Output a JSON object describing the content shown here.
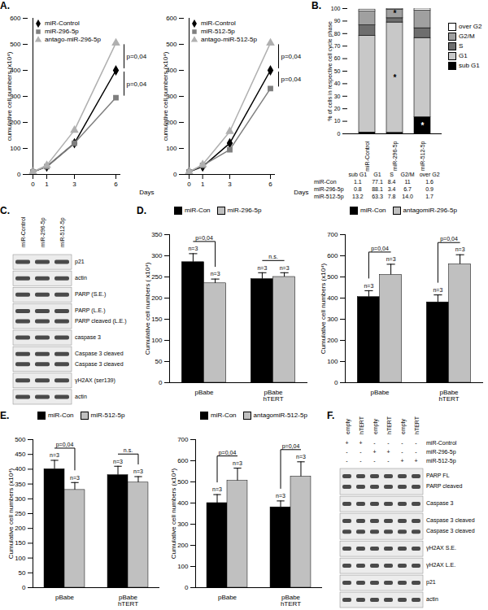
{
  "chart_data": [
    {
      "type": "line",
      "title": "A.",
      "x": [
        0,
        1,
        3,
        6
      ],
      "xlim": [
        0,
        6
      ],
      "xticks": [
        0,
        1,
        3,
        6
      ],
      "xlabel": "Days",
      "ylim": [
        0,
        600
      ],
      "yticks": [
        0,
        100,
        200,
        300,
        400,
        500,
        600
      ],
      "ylabel": "cumulative cell numbers (x10⁴)",
      "legend": "top-left",
      "series": [
        {
          "name": "miR-Control",
          "color": "#000000",
          "marker": "diamond",
          "values": [
            10,
            30,
            120,
            400
          ]
        },
        {
          "name": "miR-296-5p",
          "color": "#7f7f7f",
          "marker": "square",
          "values": [
            10,
            30,
            120,
            295
          ]
        },
        {
          "name": "antago-miR-296-5p",
          "color": "#b0b0b0",
          "marker": "triangle",
          "values": [
            10,
            35,
            170,
            505
          ]
        }
      ],
      "annotations": [
        {
          "text": "p=0,04",
          "series": [
            "antago-miR-296-5p",
            "miR-Control"
          ]
        },
        {
          "text": "p=0,04",
          "series": [
            "miR-Control",
            "miR-296-5p"
          ]
        }
      ]
    },
    {
      "type": "line",
      "x": [
        0,
        1,
        3,
        6
      ],
      "xlim": [
        0,
        6
      ],
      "xticks": [
        0,
        1,
        3,
        6
      ],
      "xlabel": "Days",
      "ylim": [
        0,
        600
      ],
      "yticks": [
        0,
        100,
        200,
        300,
        400,
        500,
        600
      ],
      "ylabel": "cumulative cell numbers (x10⁴)",
      "legend": "top-left",
      "series": [
        {
          "name": "miR-Control",
          "color": "#000000",
          "marker": "diamond",
          "values": [
            10,
            30,
            120,
            400
          ]
        },
        {
          "name": "miR-512-5p",
          "color": "#7f7f7f",
          "marker": "square",
          "values": [
            10,
            35,
            95,
            330
          ]
        },
        {
          "name": "antago-miR-512-5p",
          "color": "#b0b0b0",
          "marker": "triangle",
          "values": [
            10,
            38,
            165,
            505
          ]
        }
      ],
      "annotations": [
        {
          "text": "p=0,04",
          "series": [
            "antago-miR-512-5p",
            "miR-Control"
          ]
        },
        {
          "text": "p=0,04",
          "series": [
            "miR-Control",
            "miR-512-5p"
          ]
        }
      ]
    },
    {
      "type": "bar",
      "stacked": true,
      "title": "B.",
      "categories": [
        "miR-Control",
        "miR-296-5p",
        "miR-512-5p"
      ],
      "ylim": [
        0,
        100
      ],
      "yticks": [
        0,
        10,
        20,
        30,
        40,
        50,
        60,
        70,
        80,
        90,
        100
      ],
      "ylabel": "% of cells in respective cell cycle phase",
      "legend": "right",
      "data_labels": true,
      "row_labels": [
        "miR-Con",
        "miR-296-5p",
        "miR-512-5p"
      ],
      "series": [
        {
          "name": "sub G1",
          "color": "#000000",
          "values": [
            1.1,
            0.8,
            13.2
          ],
          "value_labels": [
            "1.1",
            "0.8",
            "13.2"
          ]
        },
        {
          "name": "G1",
          "color": "#c8c8c8",
          "values": [
            77.1,
            88.1,
            63.3
          ],
          "value_labels": [
            "77.1",
            "88.1",
            "63.3"
          ]
        },
        {
          "name": "S",
          "color": "#6e6e6e",
          "values": [
            8.4,
            3.4,
            7.8
          ],
          "value_labels": [
            "8.4",
            "3.4",
            "7.8"
          ]
        },
        {
          "name": "G2/M",
          "color": "#a0a0a0",
          "values": [
            11,
            6.7,
            14.0
          ],
          "value_labels": [
            "11",
            "6.7",
            "14.0"
          ]
        },
        {
          "name": "over G2",
          "color": "#ffffff",
          "values": [
            1.6,
            0.9,
            1.7
          ],
          "value_labels": [
            "1.6",
            "0.9",
            "1.7"
          ]
        }
      ],
      "annotations": [
        {
          "text": "*",
          "category": "miR-296-5p",
          "series": "G1"
        },
        {
          "text": "*",
          "category": "miR-296-5p",
          "series": "G2/M"
        },
        {
          "text": "*",
          "category": "miR-512-5p",
          "series": "sub G1"
        }
      ]
    },
    {
      "type": "bar",
      "title": "D.",
      "categories": [
        "pBabe",
        "pBabe hTERT"
      ],
      "ylim": [
        0,
        350
      ],
      "yticks": [
        0,
        50,
        100,
        150,
        200,
        250,
        300,
        350
      ],
      "ylabel": "Cumulative cell numbers ( x10⁴)",
      "legend": "top",
      "series": [
        {
          "name": "miR-Con",
          "color": "#000000",
          "values": [
            285,
            245
          ],
          "errors": [
            20,
            15
          ],
          "labels": [
            "n=3",
            "n=3"
          ]
        },
        {
          "name": "miR-296-5p",
          "color": "#c0c0c0",
          "values": [
            235,
            250
          ],
          "errors": [
            10,
            10
          ],
          "labels": [
            "n=3",
            "n=3"
          ]
        }
      ],
      "annotations": [
        {
          "text": "p=0,04",
          "category": "pBabe"
        },
        {
          "text": "n.s.",
          "category": "pBabe hTERT"
        }
      ]
    },
    {
      "type": "bar",
      "categories": [
        "pBabe",
        "pBabe hTERT"
      ],
      "ylim": [
        0,
        700
      ],
      "yticks": [
        0,
        100,
        200,
        300,
        400,
        500,
        600,
        700
      ],
      "ylabel": "Cumulative cell numbers (x10⁴)",
      "legend": "top",
      "series": [
        {
          "name": "miR-Con",
          "color": "#000000",
          "values": [
            405,
            380
          ],
          "errors": [
            30,
            35
          ],
          "labels": [
            "n=3",
            "n=3"
          ]
        },
        {
          "name": "antagomiR-296-5p",
          "color": "#c0c0c0",
          "values": [
            510,
            560
          ],
          "errors": [
            50,
            45
          ],
          "labels": [
            "n=3",
            "n=3"
          ]
        }
      ],
      "annotations": [
        {
          "text": "p=0,04",
          "category": "pBabe"
        },
        {
          "text": "p=0,04",
          "category": "pBabe hTERT"
        }
      ]
    },
    {
      "type": "bar",
      "title": "E.",
      "categories": [
        "pBabe",
        "pBabe hTERT"
      ],
      "ylim": [
        0,
        500
      ],
      "yticks": [
        0,
        50,
        100,
        150,
        200,
        250,
        300,
        350,
        400,
        450,
        500
      ],
      "ylabel": "Cumulative cell numbers (x10⁴)",
      "legend": "top",
      "series": [
        {
          "name": "miR-Con",
          "color": "#000000",
          "values": [
            400,
            380
          ],
          "errors": [
            30,
            30
          ],
          "labels": [
            "n=3",
            "n=3"
          ]
        },
        {
          "name": "miR-512-5p",
          "color": "#c0c0c0",
          "values": [
            330,
            355
          ],
          "errors": [
            25,
            20
          ],
          "labels": [
            "n=3",
            "n=3"
          ]
        }
      ],
      "annotations": [
        {
          "text": "p=0,04",
          "category": "pBabe"
        },
        {
          "text": "n.s.",
          "category": "pBabe hTERT"
        }
      ]
    },
    {
      "type": "bar",
      "categories": [
        "pBabe",
        "pBabe hTERT"
      ],
      "ylim": [
        0,
        700
      ],
      "yticks": [
        0,
        100,
        200,
        300,
        400,
        500,
        600,
        700
      ],
      "ylabel": "Cumulative cell numbers (x10⁴)",
      "legend": "top",
      "series": [
        {
          "name": "miR-Con",
          "color": "#000000",
          "values": [
            400,
            380
          ],
          "errors": [
            40,
            30
          ],
          "labels": [
            "n=3",
            "n=3"
          ]
        },
        {
          "name": "antagomiR-512-5p",
          "color": "#c0c0c0",
          "values": [
            505,
            525
          ],
          "errors": [
            60,
            70
          ],
          "labels": [
            "n=3",
            "n=3"
          ]
        }
      ],
      "annotations": [
        {
          "text": "p=0,04",
          "category": "pBabe"
        },
        {
          "text": "p=0,04",
          "category": "pBabe hTERT"
        }
      ]
    }
  ],
  "blots": [
    {
      "title": "C.",
      "lanes": [
        "miR-Control",
        "miR-296-5p",
        "miR-512-5p"
      ],
      "rows": [
        [
          "p21"
        ],
        [
          "actin"
        ],
        [
          "PARP (S.E.)"
        ],
        [
          "PARP (L.E.)",
          "PARP cleaved (L.E.)"
        ],
        [
          "caspase 3"
        ],
        [
          "Caspase 3 cleaved",
          "Caspase 3 cleaved"
        ],
        [
          "γH2AX (ser139)"
        ],
        [
          "actin"
        ]
      ]
    },
    {
      "title": "F.",
      "lanes": [
        "empty",
        "hTERT",
        "empty",
        "hTERT",
        "empty",
        "hTERT"
      ],
      "treatments": [
        {
          "label": "miR-Control",
          "signs": [
            "+",
            "+",
            "-",
            "-",
            "-",
            "-"
          ]
        },
        {
          "label": "miR-296-5p",
          "signs": [
            "-",
            "-",
            "+",
            "+",
            "-",
            "-"
          ]
        },
        {
          "label": "miR-512-5p",
          "signs": [
            "-",
            "-",
            "-",
            "-",
            "+",
            "+"
          ]
        }
      ],
      "rows": [
        [
          "PARP FL",
          "PARP cleaved"
        ],
        [
          "Caspase 3"
        ],
        [
          "Caspase 3 cleaved",
          "Caspase 3 cleaved"
        ],
        [
          "γH2AX S.E."
        ],
        [
          "γH2AX L.E."
        ],
        [
          "p21"
        ],
        [
          "actin"
        ]
      ]
    }
  ]
}
